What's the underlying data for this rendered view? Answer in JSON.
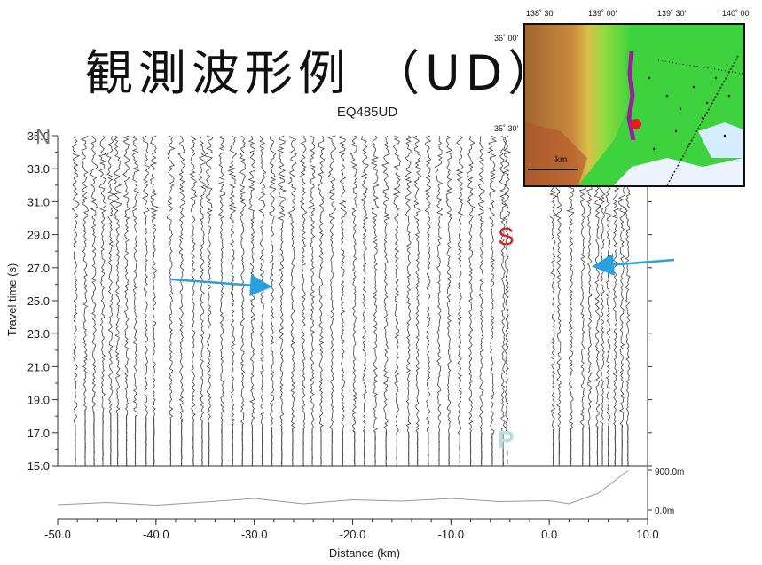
{
  "slide_title": "観測波形例 （UD）",
  "colors": {
    "arrow": "#2aa0dc",
    "s_label": "#e01f1f",
    "p_label": "#b9dde0",
    "trace": "#222222"
  },
  "chart_data": {
    "type": "line",
    "title": "EQ485UD",
    "xlabel": "Distance (km)",
    "ylabel": "Travel time (s)",
    "xlim": [
      -50,
      10
    ],
    "ylim": [
      15,
      35
    ],
    "x_ticks": [
      "-50.0",
      "-40.0",
      "-30.0",
      "-20.0",
      "-10.0",
      "0.0",
      "10.0"
    ],
    "y_ticks": [
      "15.0",
      "17.0",
      "19.0",
      "21.0",
      "23.0",
      "25.0",
      "27.0",
      "29.0",
      "31.0",
      "33.0",
      "35.0"
    ],
    "station_offsets_km": [
      -48.2,
      -47.2,
      -46.3,
      -45.4,
      -44.6,
      -43.9,
      -43.0,
      -42.1,
      -41.0,
      -40.2,
      -38.5,
      -37.4,
      -36.2,
      -35.3,
      -34.6,
      -33.3,
      -32.2,
      -31.2,
      -30.2,
      -29.2,
      -28.2,
      -27.2,
      -26.1,
      -25.0,
      -24.1,
      -23.2,
      -22.1,
      -21.0,
      -19.8,
      -18.8,
      -17.7,
      -16.6,
      -15.5,
      -14.3,
      -13.4,
      -12.3,
      -11.2,
      -10.2,
      -9.1,
      -8.0,
      -6.9,
      -5.8,
      -4.7,
      -4.3,
      0.4,
      1.0,
      2.2,
      3.4,
      4.1,
      4.9,
      5.4,
      6.0,
      6.7,
      7.4,
      8.0
    ],
    "p_arrival_curve": {
      "x": [
        -48,
        -40,
        -30,
        -20,
        -10,
        -4,
        0,
        8
      ],
      "y": [
        18.4,
        17.9,
        17.4,
        17.1,
        17.0,
        17.0,
        17.2,
        17.5
      ]
    },
    "s_arrival_time_s": 30.0,
    "annotations": [
      "N",
      "S",
      "P"
    ],
    "elevation_profile": {
      "labels": [
        "900.0m",
        "0.0m"
      ],
      "x": [
        -50,
        -45,
        -40,
        -35,
        -30,
        -25,
        -20,
        -15,
        -10,
        -5,
        0,
        2,
        5,
        8
      ],
      "y_m": [
        120,
        170,
        110,
        180,
        260,
        140,
        230,
        200,
        260,
        190,
        210,
        140,
        380,
        890
      ]
    }
  },
  "map": {
    "lon_labels": [
      "138˚ 30'",
      "139˚ 00'",
      "139˚ 30'",
      "140˚ 00'"
    ],
    "lat_labels": [
      "36˚ 00'",
      "35˚ 30'"
    ],
    "scale_label": "km"
  }
}
